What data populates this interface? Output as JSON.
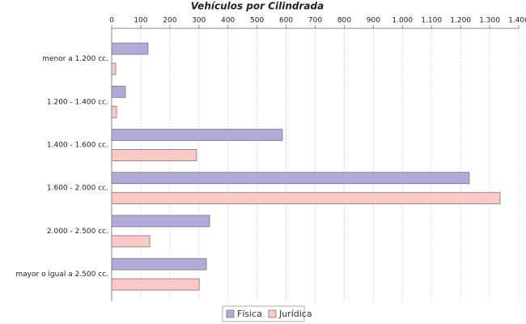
{
  "chart_data": {
    "type": "hbar",
    "title": "Vehículos por Cilindrada",
    "categories": [
      "menor a 1.200 cc.",
      "1.200 - 1.400 cc.",
      "1.400 - 1.600 cc.",
      "1.600 - 2.000 cc.",
      "2.000 - 2.500 cc.",
      "mayor o igual a 2.500 cc."
    ],
    "series": [
      {
        "name": "Física",
        "color": "#b3aad9",
        "values": [
          125,
          47,
          587,
          1230,
          337,
          326
        ]
      },
      {
        "name": "Jurídica",
        "color": "#ffc8c8",
        "values": [
          14,
          17,
          292,
          1336,
          131,
          301
        ]
      }
    ],
    "xlim": [
      0,
      1400
    ],
    "xticks": [
      0,
      100,
      200,
      300,
      400,
      500,
      600,
      700,
      800,
      900,
      {
        "value": 1000,
        "label": "1.000"
      },
      {
        "value": 1100,
        "label": "1.100"
      },
      {
        "value": 1200,
        "label": "1.200"
      },
      {
        "value": 1300,
        "label": "1.300"
      },
      {
        "value": 1400,
        "label": "1.400"
      }
    ],
    "grid": true,
    "legend": "bottom"
  }
}
